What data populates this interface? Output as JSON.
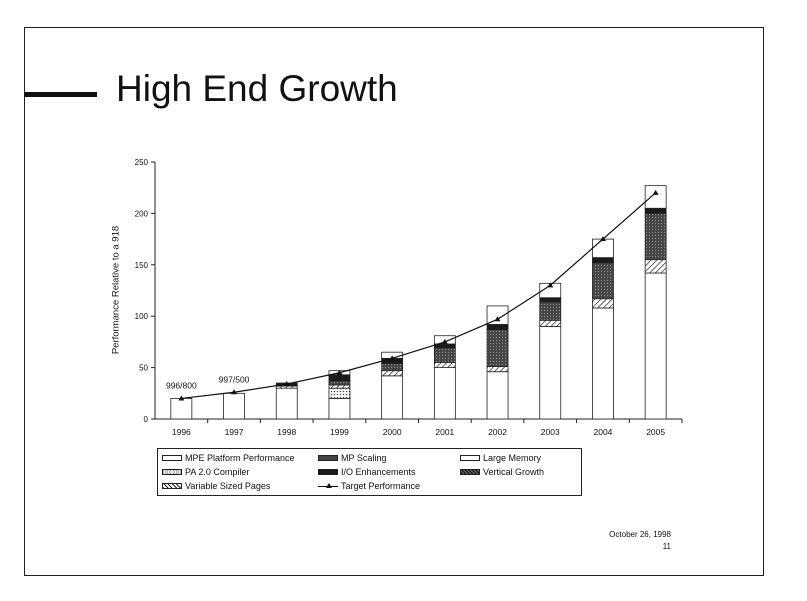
{
  "slide": {
    "title": "High End Growth",
    "footer_date": "October 26, 1998",
    "footer_page": "11"
  },
  "chart_data": {
    "type": "bar",
    "stacked": true,
    "ylabel": "Performance Relative to a 918",
    "ylim": [
      0,
      250
    ],
    "yticks": [
      0,
      50,
      100,
      150,
      200,
      250
    ],
    "categories": [
      "1996",
      "1997",
      "1998",
      "1999",
      "2000",
      "2001",
      "2002",
      "2003",
      "2004",
      "2005"
    ],
    "series": [
      {
        "name": "MPE Platform Performance",
        "pattern": "white",
        "values": [
          20,
          25,
          30,
          20,
          42,
          50,
          46,
          90,
          108,
          142
        ]
      },
      {
        "name": "PA 2.0 Compiler",
        "pattern": "dots",
        "values": [
          0,
          0,
          0,
          10,
          0,
          0,
          0,
          0,
          0,
          0
        ]
      },
      {
        "name": "Variable Sized Pages",
        "pattern": "hatch",
        "values": [
          0,
          0,
          2,
          3,
          5,
          5,
          5,
          6,
          9,
          13
        ]
      },
      {
        "name": "MP Scaling",
        "pattern": "darkgray",
        "values": [
          0,
          0,
          0,
          4,
          7,
          14,
          36,
          18,
          35,
          45
        ]
      },
      {
        "name": "I/O Enhancements",
        "pattern": "black",
        "values": [
          0,
          0,
          3,
          6,
          5,
          4,
          5,
          4,
          5,
          5
        ]
      },
      {
        "name": "Large Memory",
        "pattern": "white",
        "values": [
          0,
          0,
          0,
          4,
          6,
          8,
          18,
          14,
          18,
          22
        ]
      },
      {
        "name": "Vertical Growth",
        "pattern": "blackhatch",
        "values": [
          0,
          0,
          0,
          0,
          0,
          0,
          0,
          0,
          0,
          0
        ]
      }
    ],
    "line": {
      "name": "Target Performance",
      "values": [
        20,
        26,
        34,
        45,
        59,
        75,
        97,
        130,
        175,
        220
      ]
    },
    "annotations": [
      {
        "category": "1996",
        "text": "996/800"
      },
      {
        "category": "1997",
        "text": "997/500"
      }
    ],
    "legend": {
      "position": "bottom",
      "items": [
        {
          "label": "MPE Platform Performance",
          "swatch": "white"
        },
        {
          "label": "MP Scaling",
          "swatch": "darkgray"
        },
        {
          "label": "Large Memory",
          "swatch": "white"
        },
        {
          "label": "PA 2.0 Compiler",
          "swatch": "dots"
        },
        {
          "label": "I/O Enhancements",
          "swatch": "black"
        },
        {
          "label": "Vertical Growth",
          "swatch": "blackhatch"
        },
        {
          "label": "Variable Sized Pages",
          "swatch": "hatch"
        },
        {
          "label": "Target Performance",
          "swatch": "line"
        }
      ]
    }
  }
}
